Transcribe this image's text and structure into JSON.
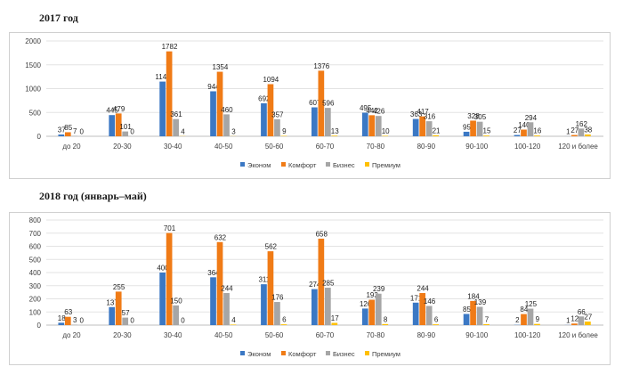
{
  "colors": {
    "Эконом": "#3b78c4",
    "Комфорт": "#f07b16",
    "Бизнес": "#a6a6a6",
    "Премиум": "#ffc000"
  },
  "chart_data": [
    {
      "type": "bar",
      "title": "2017 год",
      "categories": [
        "до 20",
        "20-30",
        "30-40",
        "40-50",
        "50-60",
        "60-70",
        "70-80",
        "80-90",
        "90-100",
        "100-120",
        "120 и более"
      ],
      "series": [
        {
          "name": "Эконом",
          "values": [
            37,
            445,
            1148,
            944,
            692,
            607,
            495,
            363,
            95,
            27,
            1
          ]
        },
        {
          "name": "Комфорт",
          "values": [
            85,
            479,
            1782,
            1354,
            1094,
            1376,
            442,
            417,
            328,
            140,
            27
          ]
        },
        {
          "name": "Бизнес",
          "values": [
            7,
            101,
            361,
            460,
            357,
            596,
            426,
            316,
            305,
            294,
            162
          ]
        },
        {
          "name": "Премиум",
          "values": [
            0,
            0,
            4,
            3,
            9,
            13,
            10,
            21,
            15,
            16,
            38
          ]
        }
      ],
      "ylim": [
        0,
        2000
      ],
      "yticks": [
        0,
        500,
        1000,
        1500,
        2000
      ],
      "legend": "bottom",
      "grid": true
    },
    {
      "type": "bar",
      "title": "2018 год (январь–май)",
      "categories": [
        "до 20",
        "20-30",
        "30-40",
        "40-50",
        "50-60",
        "60-70",
        "70-80",
        "80-90",
        "90-100",
        "100-120",
        "120 и более"
      ],
      "series": [
        {
          "name": "Эконом",
          "values": [
            18,
            137,
            400,
            364,
            311,
            274,
            126,
            171,
            85,
            2,
            1
          ]
        },
        {
          "name": "Комфорт",
          "values": [
            63,
            255,
            701,
            632,
            562,
            658,
            193,
            244,
            184,
            84,
            12
          ]
        },
        {
          "name": "Бизнес",
          "values": [
            3,
            57,
            150,
            244,
            176,
            285,
            239,
            146,
            139,
            125,
            66
          ]
        },
        {
          "name": "Премиум",
          "values": [
            0,
            0,
            0,
            4,
            6,
            17,
            8,
            6,
            7,
            9,
            27
          ]
        }
      ],
      "ylim": [
        0,
        800
      ],
      "yticks": [
        0,
        100,
        200,
        300,
        400,
        500,
        600,
        700,
        800
      ],
      "legend": "bottom",
      "grid": true
    }
  ]
}
